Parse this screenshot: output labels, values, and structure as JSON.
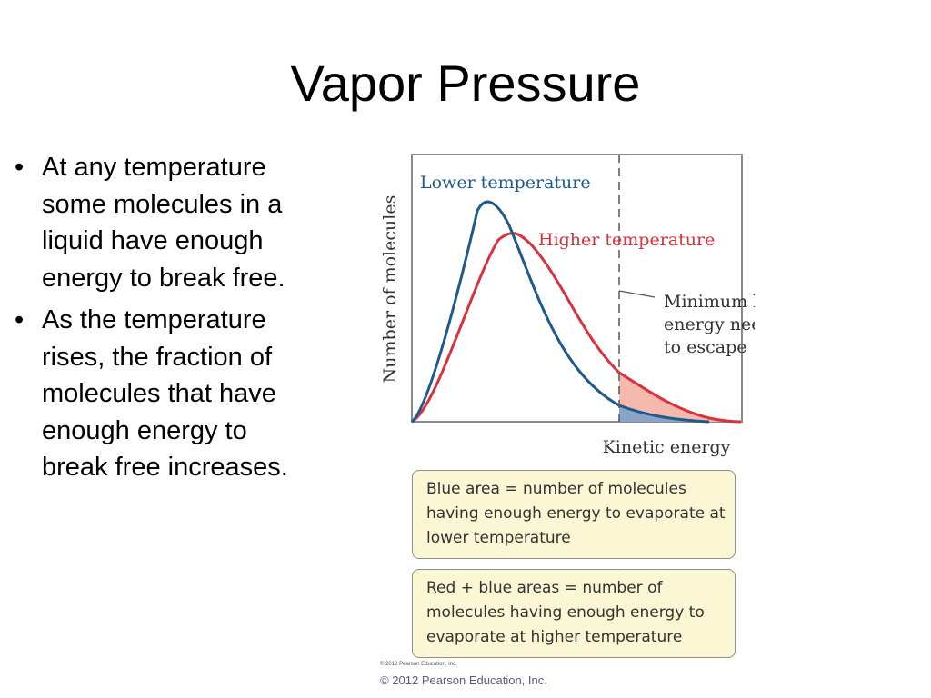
{
  "slide": {
    "title": "Vapor Pressure",
    "bullet_symbol": "•",
    "bullets": [
      "At any temperature some molecules in a liquid have enough energy to break free.",
      "As the temperature rises, the fraction of molecules that have enough energy to break free increases."
    ],
    "footer": "© 2012 Pearson Education, Inc."
  },
  "figure": {
    "small_credit": "© 2012 Pearson Education, Inc.",
    "y_axis_label": "Number of molecules",
    "x_axis_label": "Kinetic energy",
    "lower_curve_label": "Lower temperature",
    "higher_curve_label": "Higher temperature",
    "threshold_label": [
      "Minimum kinetic",
      "energy needed",
      "to escape"
    ],
    "info_boxes": [
      "Blue area = number of molecules having enough energy to evaporate at lower temperature",
      "Red + blue areas = number of molecules having enough energy to evaporate at higher temperature"
    ],
    "colors": {
      "lower": "#1f5a8c",
      "higher": "#d9323e",
      "blue_area": "#8aa4c8",
      "red_area": "#f5b8ad",
      "frame": "#8a8a8a",
      "box_fill": "#fbf6d3"
    }
  }
}
